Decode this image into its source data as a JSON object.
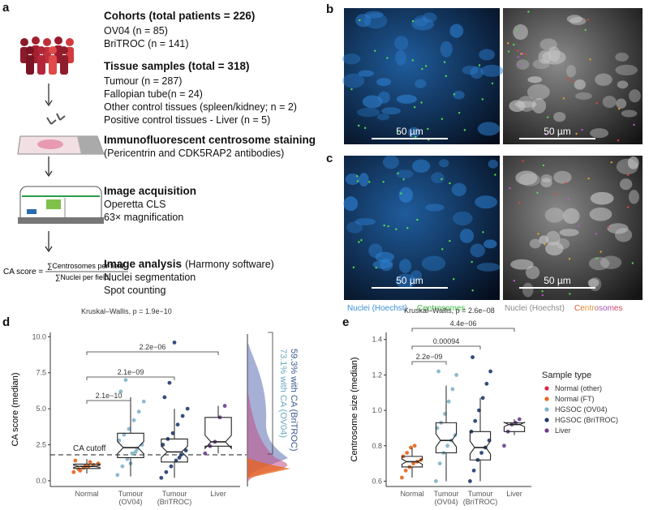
{
  "figure": {
    "a": {
      "label": "a",
      "steps": [
        {
          "title": "Cohorts (total patients = 226)",
          "lines": [
            "OV04 (n = 85)",
            "BriTROC (n = 141)"
          ]
        },
        {
          "title": "Tissue samples (total = 318)",
          "lines": [
            "Tumour (n = 287)",
            "Fallopian tube(n = 24)",
            "Other control tissues (spleen/kidney; n = 2)",
            "Positive control tissues - Liver (n = 5)"
          ]
        },
        {
          "title": "Immunofluorescent centrosome staining",
          "lines": [
            "(Pericentrin and CDK5RAP2 antibodies)"
          ]
        },
        {
          "title": "Image acquisition",
          "lines": [
            "Operetta CLS",
            "63× magnification"
          ]
        },
        {
          "title": "Image analysis",
          "title_note": "(Harmony software)",
          "lines": [
            "Nuclei segmentation",
            "Spot counting"
          ]
        }
      ],
      "formula": {
        "lhs": "CA score =",
        "numerator": "∑Centrosomes per field",
        "denominator": "∑Nuclei per field"
      }
    },
    "b": {
      "label": "b",
      "scale_bars": [
        "50 µm",
        "50 µm"
      ]
    },
    "c": {
      "label": "c",
      "scale_bars": [
        "50 µm",
        "50 µm"
      ],
      "captions": [
        [
          "Nuclei (Hoechst)",
          "Centrosomes"
        ],
        [
          "Nuclei (Hoechst)",
          "Centrosomes"
        ]
      ]
    }
  },
  "chart_data": [
    {
      "type": "box",
      "label": "d",
      "y_label": "CA score (median)",
      "categories": [
        "Normal",
        "Tumour\n(OV04)",
        "Tumour\n(BriTROC)",
        "Liver"
      ],
      "ylim": [
        -0.4,
        10.3
      ],
      "yticks": [
        {
          "value": 0,
          "label": "0.0"
        },
        {
          "value": 2.5,
          "label": "2.5"
        },
        {
          "value": 5,
          "label": "5.0"
        },
        {
          "value": 7.5,
          "label": "7.5"
        },
        {
          "value": 10,
          "label": "10.0"
        }
      ],
      "boxes": [
        {
          "low": 0.5,
          "q1": 0.85,
          "median": 1.0,
          "q3": 1.15,
          "high": 1.5
        },
        {
          "low": 0.3,
          "q1": 1.6,
          "median": 2.3,
          "q3": 3.3,
          "high": 5.8
        },
        {
          "low": 0.2,
          "q1": 1.3,
          "median": 2.0,
          "q3": 2.9,
          "high": 5.0
        },
        {
          "low": 1.9,
          "q1": 2.4,
          "median": 2.7,
          "q3": 4.4,
          "high": 5.2
        }
      ],
      "point_colors": [
        "#e8641b",
        "#7fb2c9",
        "#1f3a6e",
        "#6a3d8f"
      ],
      "points": [
        [
          0.6,
          0.8,
          0.9,
          1.0,
          1.1,
          1.2,
          1.4,
          0.7,
          1.0,
          1.3
        ],
        [
          0.4,
          1.0,
          1.5,
          1.9,
          2.2,
          2.5,
          2.8,
          3.2,
          3.6,
          4.2,
          4.8,
          5.5,
          6.2,
          7.0,
          1.2,
          2.0
        ],
        [
          0.2,
          0.6,
          1.0,
          1.4,
          1.8,
          2.1,
          2.5,
          2.9,
          3.3,
          3.9,
          4.5,
          5.0,
          5.8,
          6.8,
          9.6,
          1.6
        ],
        [
          1.9,
          2.4,
          2.7,
          4.4,
          5.2
        ]
      ],
      "test": "Kruskal–Wallis, p = 1.9e−10",
      "comparisons": [
        "2.1e−10",
        "2.1e−09",
        "2.2e−06"
      ],
      "cutoff": 1.8,
      "cutoff_label": "CA cutoff",
      "density_labels": [
        {
          "text": "73.1% with CA (OV04)",
          "color": "#6aa8bd"
        },
        {
          "text": "59.3% with CA (BriTROC)",
          "color": "#3a5a8c"
        }
      ]
    },
    {
      "type": "box",
      "label": "e",
      "y_label": "Centrosome size (median)",
      "categories": [
        "Normal",
        "Tumour\n(OV04)",
        "Tumour\n(BriTROC)",
        "Liver"
      ],
      "ylim": [
        0.57,
        1.44
      ],
      "yticks": [
        0.6,
        0.8,
        {
          "value": 1,
          "label": "1.0"
        },
        1.2,
        1.4
      ],
      "boxes": [
        {
          "low": 0.62,
          "q1": 0.68,
          "median": 0.71,
          "q3": 0.74,
          "high": 0.79
        },
        {
          "low": 0.6,
          "q1": 0.76,
          "median": 0.83,
          "q3": 0.93,
          "high": 1.14
        },
        {
          "low": 0.6,
          "q1": 0.72,
          "median": 0.79,
          "q3": 0.88,
          "high": 1.07
        },
        {
          "low": 0.86,
          "q1": 0.88,
          "median": 0.92,
          "q3": 0.93,
          "high": 0.95
        }
      ],
      "point_colors": [
        "#e8641b",
        "#7fb2c9",
        "#1f3a6e",
        "#6a3d8f"
      ],
      "points": [
        [
          0.62,
          0.66,
          0.68,
          0.7,
          0.71,
          0.72,
          0.74,
          0.76,
          0.79,
          0.8
        ],
        [
          0.6,
          0.7,
          0.76,
          0.8,
          0.83,
          0.86,
          0.9,
          0.93,
          0.98,
          1.05,
          1.12,
          1.2,
          1.22
        ],
        [
          0.6,
          0.66,
          0.72,
          0.76,
          0.79,
          0.83,
          0.88,
          0.94,
          1.0,
          1.07,
          1.15,
          1.22,
          1.3
        ],
        [
          0.8,
          0.88,
          0.92,
          0.93,
          0.95
        ]
      ],
      "test": "Kruskal–Wallis, p = 2.6e−08",
      "comparisons": [
        "2.2e−09",
        "0.00094",
        "4.4e−06"
      ],
      "legend": {
        "title": "Sample type",
        "entries": [
          {
            "name": "Normal (other)",
            "color": "#d7263d"
          },
          {
            "name": "Normal (FT)",
            "color": "#e8641b"
          },
          {
            "name": "HGSOC (OV04)",
            "color": "#7fb2c9"
          },
          {
            "name": "HGSOC (BriTROC)",
            "color": "#1f3a6e"
          },
          {
            "name": "Liver",
            "color": "#6a3d8f"
          }
        ]
      }
    }
  ]
}
